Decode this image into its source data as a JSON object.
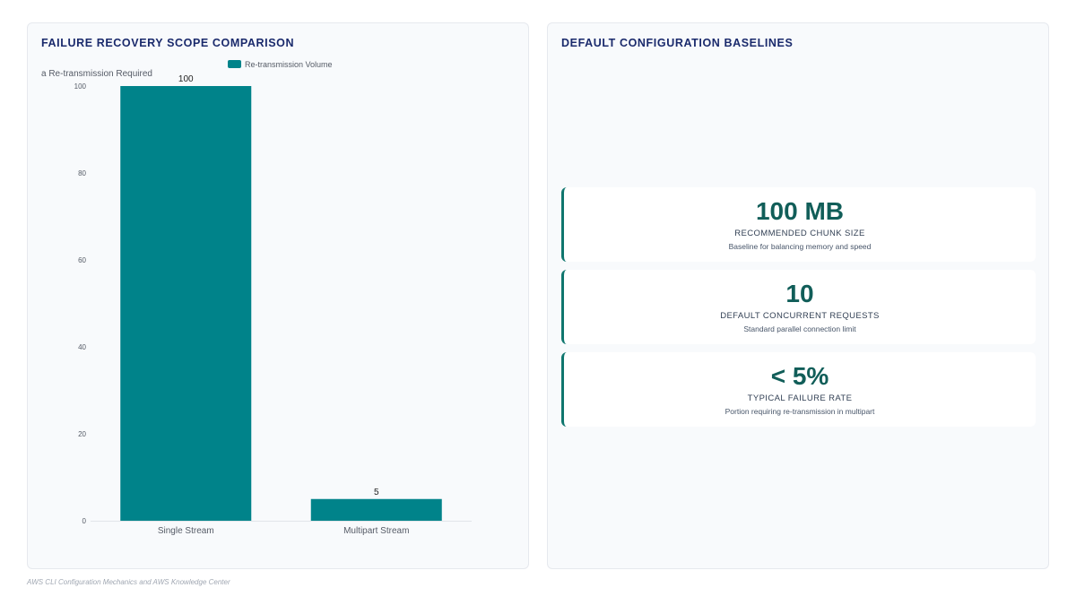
{
  "left_panel": {
    "title": "FAILURE RECOVERY SCOPE COMPARISON"
  },
  "right_panel": {
    "title": "DEFAULT CONFIGURATION BASELINES",
    "stats": [
      {
        "value": "100 MB",
        "label": "RECOMMENDED CHUNK SIZE",
        "description": "Baseline for balancing memory and speed"
      },
      {
        "value": "10",
        "label": "DEFAULT CONCURRENT REQUESTS",
        "description": "Standard parallel connection limit"
      },
      {
        "value": "< 5%",
        "label": "TYPICAL FAILURE RATE",
        "description": "Portion requiring re-transmission in multipart"
      }
    ]
  },
  "footer": "AWS CLI Configuration Mechanics and AWS Knowledge Center",
  "colors": {
    "bar": "#00838a",
    "accent": "#0f766e",
    "title": "#1a2a6c"
  },
  "chart_data": {
    "type": "bar",
    "categories": [
      "Single Stream",
      "Multipart Stream"
    ],
    "series": [
      {
        "name": "Re-transmission Volume",
        "values": [
          100,
          5
        ]
      }
    ],
    "ylabel": "a Re-transmission Required",
    "ylim": [
      0,
      100
    ],
    "yticks": [
      0,
      20,
      40,
      60,
      80,
      100
    ],
    "data_labels": [
      "100",
      "5"
    ],
    "legend": "top-center",
    "grid": false
  }
}
